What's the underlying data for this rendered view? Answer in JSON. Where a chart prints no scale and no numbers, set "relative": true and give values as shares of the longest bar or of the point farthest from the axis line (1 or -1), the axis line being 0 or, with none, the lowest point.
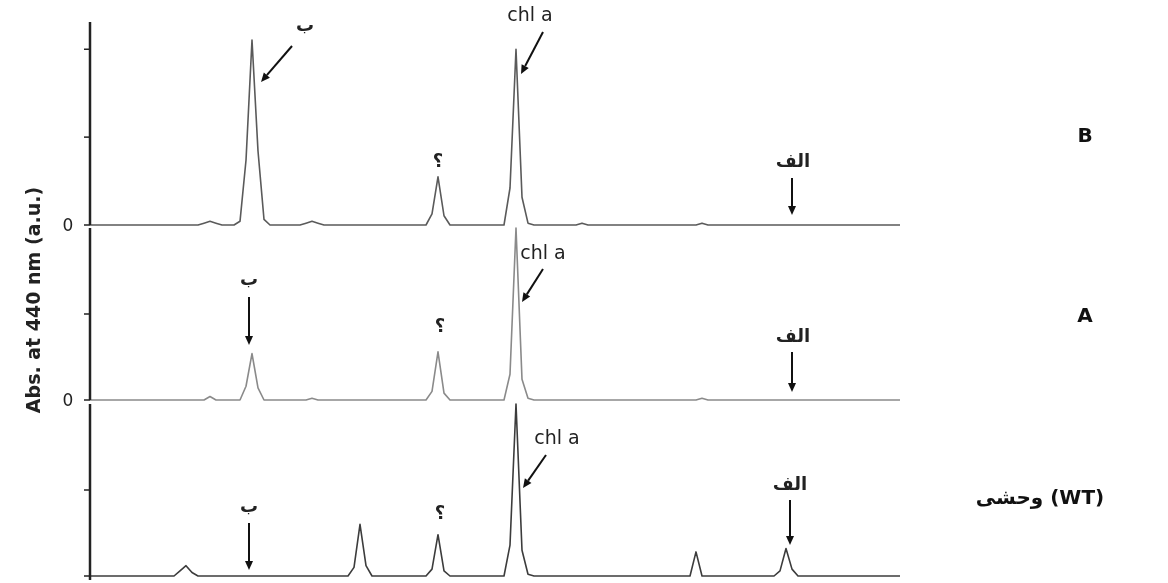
{
  "chart_data": [
    {
      "type": "line",
      "relative": true,
      "annotations": [
        "ب",
        "؟",
        "chl a",
        "الف",
        "0"
      ],
      "categories": [
        null,
        null,
        null,
        null,
        null,
        null,
        null,
        null,
        null,
        null,
        null,
        null,
        null,
        null,
        null,
        null,
        null,
        null,
        null,
        null,
        null,
        null,
        null,
        null,
        null,
        null,
        null,
        null,
        null,
        null,
        null,
        null,
        null,
        null,
        null,
        null,
        null,
        null,
        null,
        null,
        null,
        null,
        null,
        null,
        null,
        null,
        null,
        null,
        null,
        null,
        null,
        null,
        null,
        null,
        null,
        null,
        null,
        null,
        null,
        null,
        null,
        null,
        null,
        null,
        null,
        null,
        null,
        null,
        null,
        null,
        null,
        null,
        null,
        null,
        null,
        null,
        null,
        null,
        null,
        null,
        null,
        null,
        null,
        null,
        null,
        null,
        null,
        null,
        null,
        null,
        null,
        null,
        null,
        null,
        null,
        null,
        null,
        null,
        null,
        null,
        null,
        null,
        null,
        null,
        null,
        null,
        null,
        null,
        null,
        null,
        null,
        null,
        null,
        null,
        null,
        null,
        null,
        null,
        null,
        null,
        null,
        null,
        null,
        null,
        null,
        null,
        null,
        null,
        null,
        null,
        null,
        null,
        null,
        null,
        null,
        null
      ],
      "series": [
        {
          "name": "B",
          "color": "#5a5a5a",
          "values": [
            0,
            0,
            0,
            0,
            0,
            0,
            0,
            0,
            0,
            0,
            0,
            0,
            0,
            0,
            0,
            0,
            0,
            0,
            0,
            0.01,
            0.02,
            0.01,
            0,
            0,
            0,
            0.02,
            0.35,
            1,
            0.4,
            0.03,
            0,
            0,
            0,
            0,
            0,
            0,
            0.01,
            0.02,
            0.01,
            0,
            0,
            0,
            0,
            0,
            0,
            0,
            0,
            0,
            0,
            0,
            0,
            0,
            0,
            0,
            0,
            0,
            0,
            0.06,
            0.26,
            0.05,
            0,
            0,
            0,
            0,
            0,
            0,
            0,
            0,
            0,
            0,
            0.2,
            0.95,
            0.15,
            0.01,
            0,
            0,
            0,
            0,
            0,
            0,
            0,
            0,
            0.01,
            0,
            0,
            0,
            0,
            0,
            0,
            0,
            0,
            0,
            0,
            0,
            0,
            0,
            0,
            0,
            0,
            0,
            0,
            0,
            0.01,
            0,
            0,
            0,
            0,
            0,
            0,
            0,
            0,
            0,
            0,
            0,
            0,
            0,
            0,
            0,
            0,
            0,
            0,
            0,
            0,
            0,
            0,
            0,
            0,
            0,
            0,
            0,
            0,
            0,
            0,
            0,
            0,
            0
          ]
        }
      ]
    },
    {
      "type": "line",
      "ylabel": "Abs. at 440 nm (a.u.)",
      "relative": true,
      "annotations": [
        "ب",
        "؟",
        "chl a",
        "الف",
        "0"
      ],
      "categories": [
        null,
        null,
        null,
        null,
        null,
        null,
        null,
        null,
        null,
        null,
        null,
        null,
        null,
        null,
        null,
        null,
        null,
        null,
        null,
        null,
        null,
        null,
        null,
        null,
        null,
        null,
        null,
        null,
        null,
        null,
        null,
        null,
        null,
        null,
        null,
        null,
        null,
        null,
        null,
        null,
        null,
        null,
        null,
        null,
        null,
        null,
        null,
        null,
        null,
        null,
        null,
        null,
        null,
        null,
        null,
        null,
        null,
        null,
        null,
        null,
        null,
        null,
        null,
        null,
        null,
        null,
        null,
        null,
        null,
        null,
        null,
        null,
        null,
        null,
        null,
        null,
        null,
        null,
        null,
        null,
        null,
        null,
        null,
        null,
        null,
        null,
        null,
        null,
        null,
        null,
        null,
        null,
        null,
        null,
        null,
        null,
        null,
        null,
        null,
        null,
        null,
        null,
        null,
        null,
        null,
        null,
        null,
        null,
        null,
        null,
        null,
        null,
        null,
        null,
        null,
        null,
        null,
        null,
        null,
        null,
        null,
        null,
        null,
        null,
        null,
        null,
        null,
        null,
        null,
        null,
        null,
        null,
        null,
        null,
        null,
        null
      ],
      "series": [
        {
          "name": "A",
          "color": "#8a8a8a",
          "values": [
            0,
            0,
            0,
            0,
            0,
            0,
            0,
            0,
            0,
            0,
            0,
            0,
            0,
            0,
            0,
            0,
            0,
            0,
            0,
            0,
            0.02,
            0,
            0,
            0,
            0,
            0,
            0.08,
            0.27,
            0.07,
            0,
            0,
            0,
            0,
            0,
            0,
            0,
            0,
            0.01,
            0,
            0,
            0,
            0,
            0,
            0,
            0,
            0,
            0,
            0,
            0,
            0,
            0,
            0,
            0,
            0,
            0,
            0,
            0,
            0.05,
            0.28,
            0.04,
            0,
            0,
            0,
            0,
            0,
            0,
            0,
            0,
            0,
            0,
            0.15,
            1,
            0.12,
            0.01,
            0,
            0,
            0,
            0,
            0,
            0,
            0,
            0,
            0,
            0,
            0,
            0,
            0,
            0,
            0,
            0,
            0,
            0,
            0,
            0,
            0,
            0,
            0,
            0,
            0,
            0,
            0,
            0,
            0.01,
            0,
            0,
            0,
            0,
            0,
            0,
            0,
            0,
            0,
            0,
            0,
            0,
            0,
            0,
            0,
            0,
            0,
            0,
            0,
            0,
            0,
            0,
            0,
            0,
            0,
            0,
            0,
            0,
            0,
            0,
            0,
            0,
            0
          ]
        }
      ]
    },
    {
      "type": "line",
      "relative": true,
      "annotations": [
        "ب",
        "؟",
        "chl a",
        "الف"
      ],
      "categories": [
        null,
        null,
        null,
        null,
        null,
        null,
        null,
        null,
        null,
        null,
        null,
        null,
        null,
        null,
        null,
        null,
        null,
        null,
        null,
        null,
        null,
        null,
        null,
        null,
        null,
        null,
        null,
        null,
        null,
        null,
        null,
        null,
        null,
        null,
        null,
        null,
        null,
        null,
        null,
        null,
        null,
        null,
        null,
        null,
        null,
        null,
        null,
        null,
        null,
        null,
        null,
        null,
        null,
        null,
        null,
        null,
        null,
        null,
        null,
        null,
        null,
        null,
        null,
        null,
        null,
        null,
        null,
        null,
        null,
        null,
        null,
        null,
        null,
        null,
        null,
        null,
        null,
        null,
        null,
        null,
        null,
        null,
        null,
        null,
        null,
        null,
        null,
        null,
        null,
        null,
        null,
        null,
        null,
        null,
        null,
        null,
        null,
        null,
        null,
        null,
        null,
        null,
        null,
        null,
        null,
        null,
        null,
        null,
        null,
        null,
        null,
        null,
        null,
        null,
        null,
        null,
        null,
        null,
        null,
        null,
        null,
        null,
        null,
        null,
        null,
        null,
        null,
        null,
        null,
        null,
        null,
        null,
        null,
        null,
        null,
        null
      ],
      "series": [
        {
          "name": "وحشی (WT)",
          "color": "#3c3c3c",
          "values": [
            0,
            0,
            0,
            0,
            0,
            0,
            0,
            0,
            0,
            0,
            0,
            0,
            0,
            0,
            0,
            0.03,
            0.06,
            0.02,
            0,
            0,
            0,
            0,
            0,
            0,
            0,
            0,
            0,
            0,
            0,
            0,
            0,
            0,
            0,
            0,
            0,
            0,
            0,
            0,
            0,
            0,
            0,
            0,
            0,
            0,
            0.05,
            0.3,
            0.06,
            0,
            0,
            0,
            0,
            0,
            0,
            0,
            0,
            0,
            0,
            0.04,
            0.24,
            0.03,
            0,
            0,
            0,
            0,
            0,
            0,
            0,
            0,
            0,
            0,
            0.18,
            1,
            0.15,
            0.01,
            0,
            0,
            0,
            0,
            0,
            0,
            0,
            0,
            0,
            0,
            0,
            0,
            0,
            0,
            0,
            0,
            0,
            0,
            0,
            0,
            0,
            0,
            0,
            0,
            0,
            0,
            0,
            0.14,
            0,
            0,
            0,
            0,
            0,
            0,
            0,
            0,
            0,
            0,
            0,
            0,
            0,
            0.03,
            0.16,
            0.04,
            0,
            0,
            0,
            0,
            0,
            0,
            0,
            0,
            0,
            0,
            0,
            0,
            0,
            0,
            0,
            0,
            0,
            0
          ]
        }
      ]
    }
  ]
}
